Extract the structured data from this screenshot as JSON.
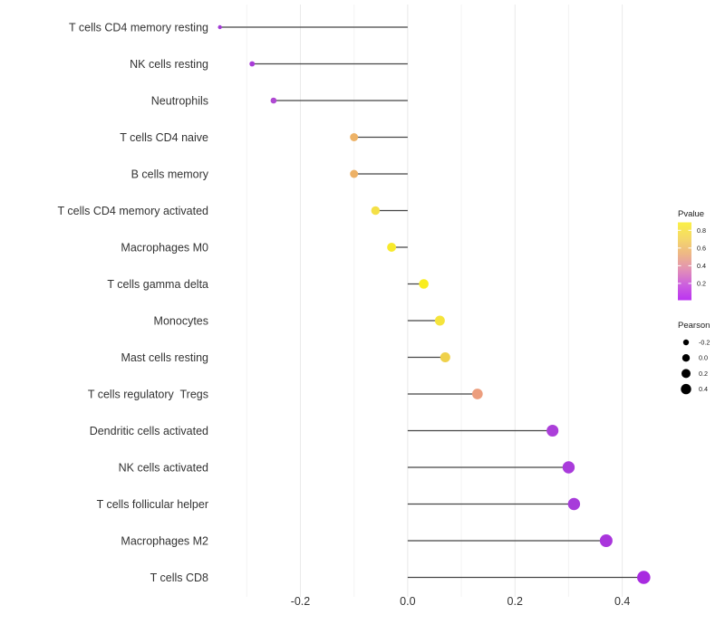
{
  "chart_data": {
    "type": "scatter",
    "variant": "lollipop",
    "orientation": "horizontal",
    "title": "",
    "xlabel": "",
    "ylabel": "",
    "grid": "vertical-only",
    "x_axis": {
      "xlim": [
        -0.39,
        0.48
      ],
      "ticks": [
        -0.2,
        0.0,
        0.2,
        0.4
      ],
      "tick_labels": [
        "-0.2",
        "0.0",
        "0.2",
        "0.4"
      ],
      "minor_ticks": [
        -0.3,
        -0.1,
        0.1,
        0.3
      ]
    },
    "series_note": "Each point: immune cell type, Pearson correlation (x/size), dot fill encodes Pvalue",
    "points": [
      {
        "name": "T cells CD4 memory resting",
        "pearson": -0.35,
        "color": "#a13ad4"
      },
      {
        "name": "NK cells resting",
        "pearson": -0.29,
        "color": "#a83bd7"
      },
      {
        "name": "Neutrophils",
        "pearson": -0.25,
        "color": "#af49d2"
      },
      {
        "name": "T cells CD4 naive",
        "pearson": -0.1,
        "color": "#edb266"
      },
      {
        "name": "B cells memory",
        "pearson": -0.1,
        "color": "#edb166"
      },
      {
        "name": "T cells CD4 memory activated",
        "pearson": -0.06,
        "color": "#f4e047"
      },
      {
        "name": "Macrophages M0",
        "pearson": -0.03,
        "color": "#f8ea2c"
      },
      {
        "name": "T cells gamma delta",
        "pearson": 0.03,
        "color": "#f9ed1f"
      },
      {
        "name": "Monocytes",
        "pearson": 0.06,
        "color": "#f5e43c"
      },
      {
        "name": "Mast cells resting",
        "pearson": 0.07,
        "color": "#efd14b"
      },
      {
        "name": "T cells regulatory  Tregs",
        "pearson": 0.13,
        "color": "#ec9e7e"
      },
      {
        "name": "Dendritic cells activated",
        "pearson": 0.27,
        "color": "#ab3fd9"
      },
      {
        "name": "NK cells activated",
        "pearson": 0.3,
        "color": "#a93bdb"
      },
      {
        "name": "T cells follicular helper",
        "pearson": 0.31,
        "color": "#a73bda"
      },
      {
        "name": "Macrophages M2",
        "pearson": 0.37,
        "color": "#a935dc"
      },
      {
        "name": "T cells CD8",
        "pearson": 0.44,
        "color": "#a82be0"
      }
    ],
    "legend_pvalue": {
      "title": "Pvalue",
      "tick_values": [
        0.8,
        0.6,
        0.4,
        0.2
      ],
      "tick_labels": [
        "0.8",
        "0.6",
        "0.4",
        "0.2"
      ],
      "limits": [
        0.01,
        0.89
      ],
      "gradient_top_to_bottom": [
        "#faf046",
        "#f5d968",
        "#eeb885",
        "#e392b4",
        "#cc60de",
        "#bb33f1"
      ]
    },
    "legend_pearson": {
      "title": "Pearson",
      "entries": [
        {
          "label": "-0.2",
          "value": -0.2
        },
        {
          "label": "0.0",
          "value": 0.0
        },
        {
          "label": "0.2",
          "value": 0.2
        },
        {
          "label": "0.4",
          "value": 0.4
        }
      ]
    },
    "colors": {
      "stem": "#454545",
      "grid_major": "#e9e9e9",
      "grid_minor": "#f4f4f4",
      "axis_text": "#333333",
      "legend_text": "#1a1a1a",
      "legend_dot": "#000000",
      "background": "#ffffff"
    }
  }
}
